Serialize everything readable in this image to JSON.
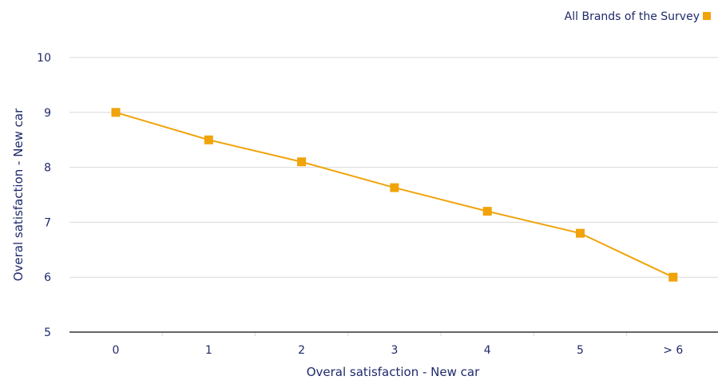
{
  "chart_data": {
    "type": "line",
    "categories": [
      "0",
      "1",
      "2",
      "3",
      "4",
      "5",
      "> 6"
    ],
    "series": [
      {
        "name": "All Brands of the Survey",
        "values": [
          9.0,
          8.5,
          8.1,
          7.63,
          7.2,
          6.8,
          6.0
        ],
        "color": "#f0a30a"
      }
    ],
    "xlabel": "Overal satisfaction - New car",
    "ylabel": "Overal satisfaction - New car",
    "ylim": [
      5,
      10
    ],
    "yticks": [
      5,
      6,
      7,
      8,
      9,
      10
    ],
    "grid": true,
    "legend_position": "top-right",
    "colors": {
      "text": "#1f2a6b",
      "grid": "#d9d9d9",
      "axis": "#333333"
    }
  }
}
